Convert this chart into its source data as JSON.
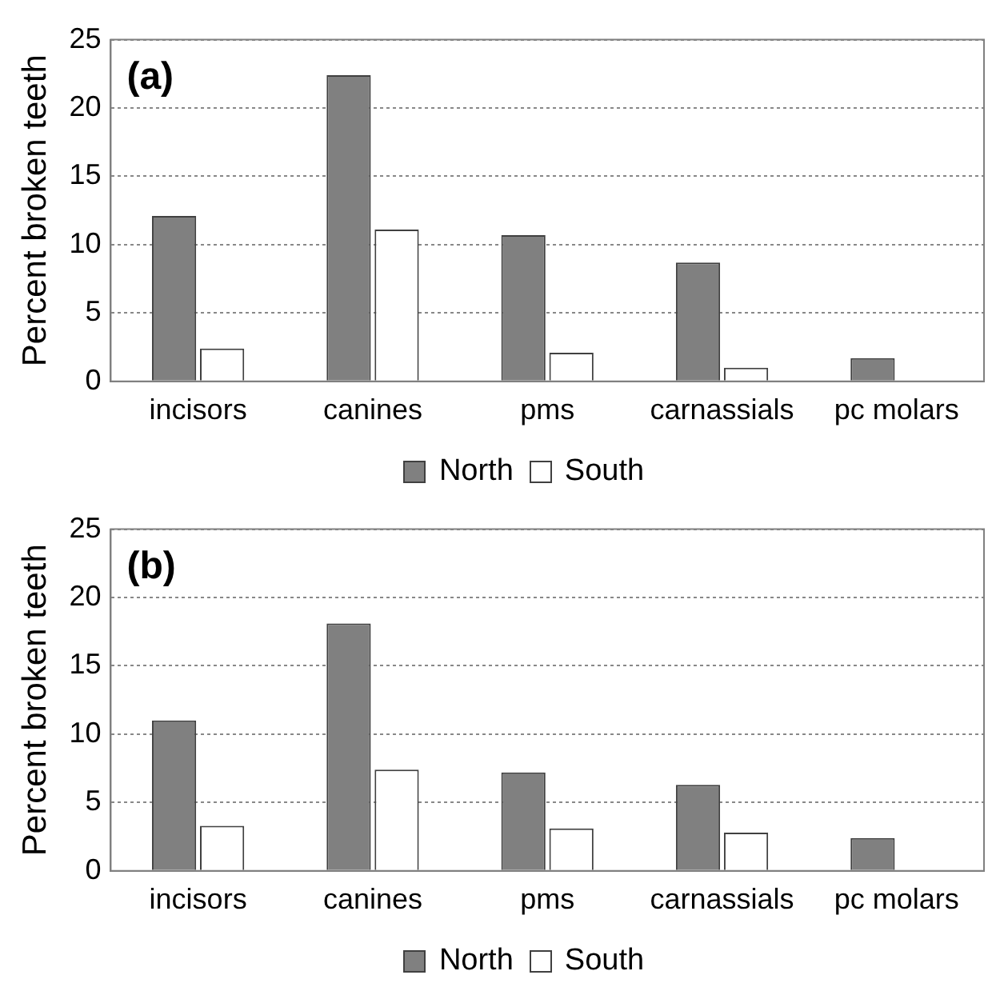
{
  "chart_data": [
    {
      "type": "bar",
      "ylabel": "Percent broken teeth",
      "annotations": [
        "(a)"
      ],
      "categories": [
        "incisors",
        "canines",
        "pms",
        "carnassials",
        "pc molars"
      ],
      "series": [
        {
          "name": "North",
          "color": "#808080",
          "values": [
            12.1,
            22.4,
            10.7,
            8.7,
            1.7
          ]
        },
        {
          "name": "South",
          "color": "#ffffff",
          "values": [
            2.4,
            11.1,
            2.1,
            1.0,
            0
          ]
        }
      ],
      "ylim": [
        0,
        25
      ],
      "yticks": [
        0,
        5,
        10,
        15,
        20,
        25
      ],
      "grid": "y",
      "legend": "bottom"
    },
    {
      "type": "bar",
      "ylabel": "Percent broken teeth",
      "annotations": [
        "(b)"
      ],
      "categories": [
        "incisors",
        "canines",
        "pms",
        "carnassials",
        "pc molars"
      ],
      "series": [
        {
          "name": "North",
          "color": "#808080",
          "values": [
            11.0,
            18.1,
            7.2,
            6.3,
            2.4
          ]
        },
        {
          "name": "South",
          "color": "#ffffff",
          "values": [
            3.3,
            7.4,
            3.1,
            2.8,
            0
          ]
        }
      ],
      "ylim": [
        0,
        25
      ],
      "yticks": [
        0,
        5,
        10,
        15,
        20,
        25
      ],
      "grid": "y",
      "legend": "bottom"
    }
  ]
}
